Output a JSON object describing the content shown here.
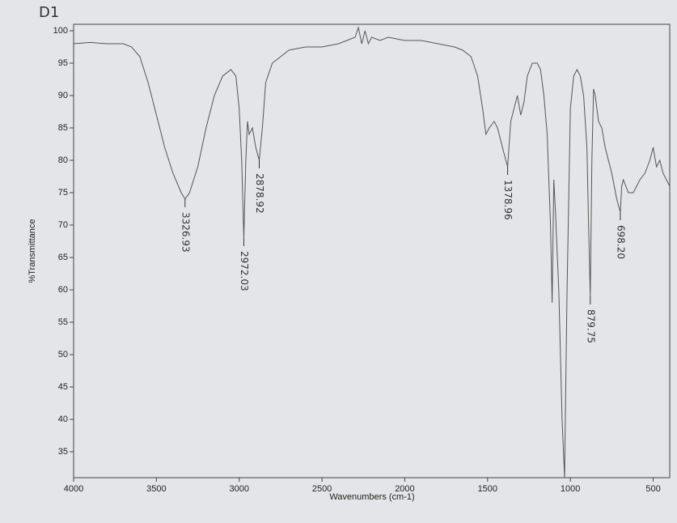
{
  "chart_data": {
    "type": "line",
    "note": "D1",
    "xlabel": "Wavenumbers (cm-1)",
    "ylabel": "%Transmittance",
    "xlim": [
      4000,
      400
    ],
    "ylim": [
      31,
      101
    ],
    "xticks": [
      4000,
      3500,
      3000,
      2500,
      2000,
      1500,
      1000,
      500
    ],
    "yticks": [
      35,
      40,
      45,
      50,
      55,
      60,
      65,
      70,
      75,
      80,
      85,
      90,
      95,
      100
    ],
    "color": "#555555",
    "x": [
      4000,
      3900,
      3800,
      3700,
      3650,
      3600,
      3550,
      3500,
      3450,
      3400,
      3350,
      3326.93,
      3300,
      3250,
      3200,
      3150,
      3100,
      3050,
      3020,
      3000,
      2985,
      2972.03,
      2960,
      2950,
      2940,
      2920,
      2900,
      2878.92,
      2860,
      2840,
      2800,
      2700,
      2600,
      2500,
      2400,
      2350,
      2300,
      2280,
      2260,
      2240,
      2220,
      2200,
      2150,
      2100,
      2000,
      1900,
      1800,
      1700,
      1650,
      1600,
      1560,
      1530,
      1510,
      1490,
      1460,
      1440,
      1420,
      1400,
      1378.96,
      1360,
      1340,
      1320,
      1300,
      1280,
      1260,
      1230,
      1200,
      1180,
      1160,
      1140,
      1120,
      1110,
      1100,
      1090,
      1070,
      1050,
      1035,
      1020,
      1000,
      980,
      960,
      940,
      920,
      900,
      890,
      879.75,
      870,
      860,
      850,
      830,
      810,
      790,
      770,
      750,
      720,
      698.2,
      690,
      680,
      650,
      620,
      580,
      550,
      520,
      500,
      480,
      460,
      440,
      420,
      400
    ],
    "values": [
      98,
      98.2,
      98,
      98,
      97.5,
      96,
      92,
      87,
      82,
      78,
      75,
      74,
      75,
      79,
      85,
      90,
      93,
      94,
      93,
      88,
      80,
      68,
      80,
      86,
      84,
      85,
      82,
      80,
      85,
      92,
      95,
      97,
      97.5,
      97.5,
      98,
      98.5,
      99,
      100.5,
      98,
      100,
      98,
      99,
      98.5,
      99,
      98.5,
      98.5,
      98,
      97.5,
      97,
      96,
      93,
      88,
      84,
      85,
      86,
      85,
      83,
      81,
      79,
      86,
      88,
      90,
      87,
      89,
      93,
      95,
      95,
      94,
      90,
      84,
      70,
      58,
      77,
      72,
      60,
      40,
      31,
      60,
      88,
      93,
      94,
      93,
      90,
      82,
      70,
      59,
      80,
      91,
      90,
      86,
      85,
      82,
      80,
      78,
      74,
      72,
      76,
      77,
      75,
      75,
      77,
      78,
      80,
      82,
      79,
      80,
      78,
      77,
      76
    ],
    "annotations": [
      {
        "text": "3326.93",
        "x": 3326.93
      },
      {
        "text": "2972.03",
        "x": 2972.03
      },
      {
        "text": "2878.92",
        "x": 2878.92
      },
      {
        "text": "1378.96",
        "x": 1378.96
      },
      {
        "text": "879.75",
        "x": 879.75
      },
      {
        "text": "698.20",
        "x": 698.2
      }
    ]
  }
}
